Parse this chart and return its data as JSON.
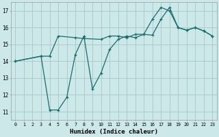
{
  "xlabel": "Humidex (Indice chaleur)",
  "bg_color": "#cce8e8",
  "grid_color": "#aacccc",
  "line_color": "#1a6b6b",
  "xlim": [
    -0.5,
    23.5
  ],
  "ylim": [
    10.5,
    17.5
  ],
  "xticks": [
    0,
    1,
    2,
    3,
    4,
    5,
    6,
    7,
    8,
    9,
    10,
    11,
    12,
    13,
    14,
    15,
    16,
    17,
    18,
    19,
    20,
    21,
    22,
    23
  ],
  "yticks": [
    11,
    12,
    13,
    14,
    15,
    16,
    17
  ],
  "line1_x": [
    0,
    3,
    4,
    5,
    7,
    8,
    10,
    11,
    12,
    13,
    14,
    15,
    16,
    17,
    18,
    19,
    20,
    21,
    22,
    23
  ],
  "line1_y": [
    14.0,
    14.3,
    14.3,
    15.5,
    15.4,
    15.35,
    15.3,
    15.5,
    15.5,
    15.4,
    15.6,
    15.6,
    16.5,
    17.2,
    17.0,
    16.0,
    15.85,
    16.0,
    15.8,
    15.5
  ],
  "line2_x": [
    0,
    3,
    4,
    5,
    6,
    7,
    8,
    9,
    10,
    11,
    12,
    13,
    14,
    15,
    16,
    17,
    18,
    19,
    20,
    21,
    22,
    23
  ],
  "line2_y": [
    14.0,
    14.3,
    11.1,
    11.1,
    11.85,
    14.4,
    15.5,
    12.35,
    13.3,
    14.7,
    15.3,
    15.5,
    15.4,
    15.6,
    15.55,
    16.5,
    17.2,
    16.0,
    15.85,
    16.0,
    15.8,
    15.5
  ]
}
